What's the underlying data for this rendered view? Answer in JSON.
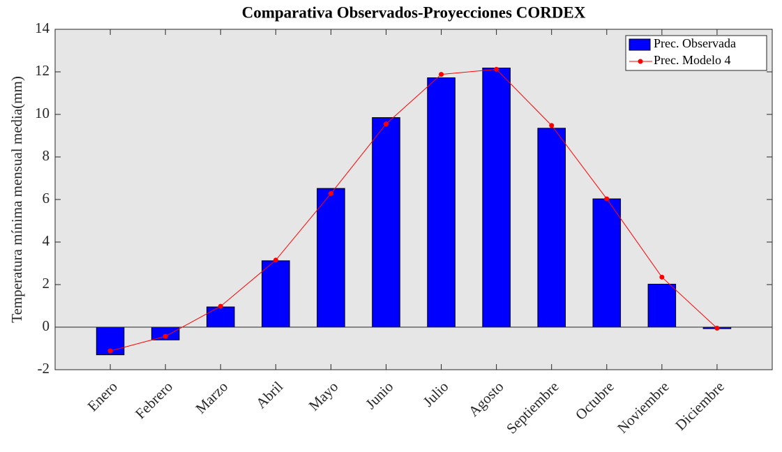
{
  "chart_data": {
    "type": "bar",
    "title": "Comparativa Observados-Proyecciones CORDEX",
    "y_label": "Temperatura mínima mensual media(mm)",
    "categories": [
      "Enero",
      "Febrero",
      "Marzo",
      "Abril",
      "Mayo",
      "Junio",
      "Julio",
      "Agosto",
      "Septiembre",
      "Octubre",
      "Noviembre",
      "Diciembre"
    ],
    "series": [
      {
        "name": "Prec. Observada",
        "type": "bar",
        "color": "#0000ff",
        "values": [
          -1.3,
          -0.6,
          0.95,
          3.12,
          6.52,
          9.85,
          11.72,
          12.18,
          9.35,
          6.03,
          2.02,
          -0.07
        ]
      },
      {
        "name": "Prec. Modelo 4",
        "type": "line",
        "color": "#ff0000",
        "values": [
          -1.12,
          -0.43,
          0.98,
          3.15,
          6.28,
          9.55,
          11.88,
          12.12,
          9.48,
          6.03,
          2.35,
          -0.05
        ]
      }
    ],
    "ylim": [
      -2,
      14
    ],
    "yticks": [
      -2,
      0,
      2,
      4,
      6,
      8,
      10,
      12,
      14
    ],
    "legend": "top-right"
  }
}
